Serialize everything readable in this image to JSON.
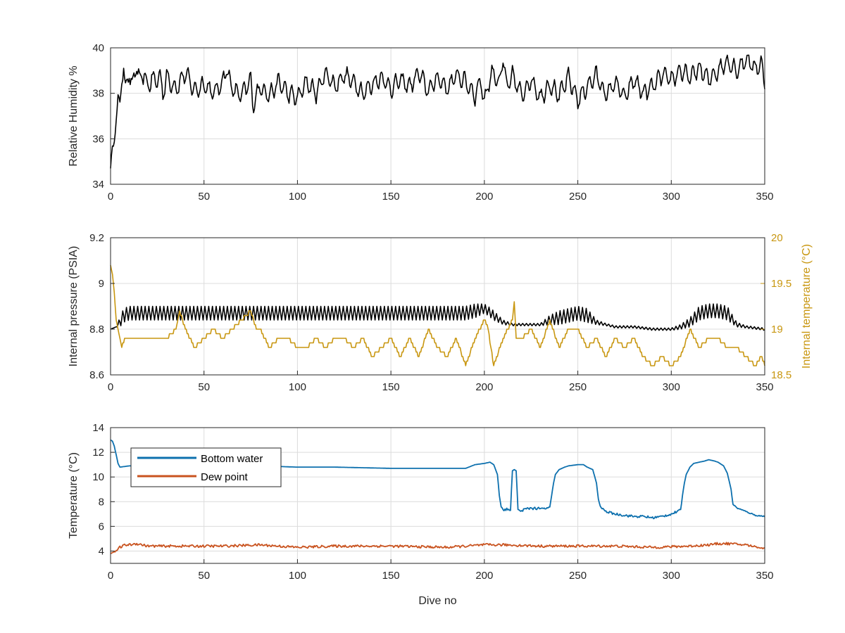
{
  "colors": {
    "humidity": "#000000",
    "pressure": "#000000",
    "internal_temperature": "#c8960f",
    "bottom_water": "#0d70ae",
    "dew_point": "#c9531f"
  },
  "chart_data": [
    {
      "type": "line",
      "title": "",
      "xlabel": "",
      "ylabel": "Relative Humidity %",
      "xlim": [
        0,
        350
      ],
      "ylim": [
        34,
        40
      ],
      "xticks": [
        0,
        50,
        100,
        150,
        200,
        250,
        300,
        350
      ],
      "yticks": [
        34,
        36,
        38,
        40
      ],
      "grid": true,
      "series": [
        {
          "color": "#000000",
          "x": [
            0,
            1,
            2,
            3,
            4,
            5,
            6,
            7,
            8,
            10,
            12,
            14,
            16,
            18,
            20,
            22,
            24,
            26,
            28,
            30,
            35,
            40,
            45,
            50,
            55,
            60,
            62,
            65,
            70,
            75,
            76,
            80,
            85,
            90,
            95,
            100,
            105,
            110,
            115,
            120,
            125,
            130,
            135,
            140,
            145,
            150,
            155,
            160,
            165,
            170,
            175,
            180,
            185,
            190,
            195,
            198,
            200,
            202,
            205,
            208,
            210,
            212,
            215,
            220,
            225,
            230,
            235,
            240,
            245,
            250,
            255,
            260,
            265,
            270,
            275,
            280,
            285,
            290,
            295,
            300,
            305,
            310,
            315,
            320,
            325,
            330,
            335,
            340,
            345,
            348,
            350
          ],
          "y": [
            34.8,
            35.5,
            36.0,
            36.8,
            37.8,
            37.6,
            38.5,
            39.2,
            38.2,
            38.9,
            38.3,
            39.3,
            38.4,
            39.0,
            38.1,
            38.8,
            38.4,
            38.9,
            38.0,
            38.7,
            38.2,
            38.9,
            38.1,
            38.4,
            38.0,
            38.5,
            39.1,
            38.2,
            37.9,
            38.6,
            37.5,
            38.3,
            37.9,
            38.5,
            38.0,
            37.8,
            38.5,
            38.0,
            38.9,
            38.3,
            38.8,
            38.5,
            38.0,
            38.4,
            38.7,
            38.2,
            38.6,
            38.3,
            38.9,
            38.1,
            38.7,
            38.2,
            38.8,
            38.5,
            37.9,
            38.6,
            37.6,
            38.4,
            39.0,
            38.3,
            39.6,
            38.2,
            38.8,
            37.9,
            38.6,
            37.8,
            38.4,
            37.9,
            38.7,
            37.7,
            38.3,
            38.8,
            37.9,
            38.5,
            37.8,
            38.6,
            38.0,
            38.3,
            38.8,
            38.6,
            39.0,
            38.7,
            39.1,
            38.6,
            39.0,
            39.4,
            39.0,
            39.5,
            39.1,
            39.3,
            38.5
          ]
        }
      ]
    },
    {
      "type": "line",
      "title": "",
      "xlabel": "",
      "ylabel": "Internal pressure (PSIA)",
      "ylabel_right": "Internal temperature (°C)",
      "xlim": [
        0,
        350
      ],
      "ylim": [
        8.6,
        9.2
      ],
      "ylim_right": [
        18.5,
        20
      ],
      "xticks": [
        0,
        50,
        100,
        150,
        200,
        250,
        300,
        350
      ],
      "yticks": [
        8.6,
        8.8,
        9,
        9.2
      ],
      "yticks_right": [
        18.5,
        19,
        19.5,
        20
      ],
      "grid": true,
      "series": [
        {
          "axis": "left",
          "color": "#000000",
          "x": [
            0,
            3,
            5,
            7,
            10,
            15,
            20,
            30,
            40,
            50,
            60,
            70,
            80,
            90,
            100,
            110,
            120,
            130,
            140,
            150,
            160,
            170,
            180,
            190,
            195,
            200,
            202,
            205,
            210,
            215,
            220,
            230,
            235,
            240,
            245,
            250,
            255,
            260,
            265,
            270,
            280,
            290,
            300,
            305,
            310,
            315,
            320,
            325,
            330,
            335,
            340,
            350
          ],
          "y": [
            8.8,
            8.81,
            8.83,
            8.86,
            8.87,
            8.87,
            8.87,
            8.87,
            8.87,
            8.87,
            8.87,
            8.87,
            8.87,
            8.87,
            8.87,
            8.87,
            8.87,
            8.87,
            8.87,
            8.87,
            8.87,
            8.87,
            8.87,
            8.87,
            8.88,
            8.89,
            8.88,
            8.86,
            8.83,
            8.82,
            8.82,
            8.82,
            8.84,
            8.85,
            8.86,
            8.87,
            8.86,
            8.83,
            8.82,
            8.81,
            8.81,
            8.8,
            8.8,
            8.81,
            8.83,
            8.87,
            8.88,
            8.88,
            8.87,
            8.82,
            8.81,
            8.8
          ],
          "oscillation": [
            0,
            0,
            0.02,
            0.03,
            0.03,
            0.03,
            0.03,
            0.03,
            0.03,
            0.03,
            0.03,
            0.03,
            0.03,
            0.03,
            0.03,
            0.03,
            0.03,
            0.03,
            0.03,
            0.03,
            0.03,
            0.03,
            0.03,
            0.03,
            0.03,
            0.02,
            0.02,
            0.02,
            0.01,
            0.005,
            0.005,
            0.005,
            0.02,
            0.03,
            0.03,
            0.03,
            0.03,
            0.01,
            0.005,
            0.005,
            0.005,
            0.005,
            0.005,
            0.01,
            0.02,
            0.03,
            0.03,
            0.03,
            0.03,
            0.01,
            0.005,
            0.005
          ]
        },
        {
          "axis": "right",
          "color": "#c8960f",
          "x": [
            0,
            1,
            2,
            3,
            4,
            5,
            6,
            8,
            12,
            15,
            18,
            20,
            25,
            30,
            35,
            37,
            40,
            45,
            50,
            55,
            60,
            65,
            70,
            75,
            78,
            80,
            85,
            90,
            95,
            100,
            105,
            110,
            115,
            120,
            125,
            130,
            135,
            140,
            145,
            150,
            155,
            160,
            165,
            170,
            175,
            180,
            185,
            190,
            195,
            200,
            202,
            205,
            210,
            215,
            216,
            217,
            220,
            225,
            230,
            235,
            240,
            245,
            250,
            255,
            260,
            265,
            270,
            275,
            280,
            285,
            290,
            295,
            300,
            305,
            310,
            315,
            320,
            325,
            330,
            335,
            340,
            345,
            348,
            350
          ],
          "y": [
            19.7,
            19.6,
            19.4,
            19.1,
            19.0,
            18.9,
            18.8,
            18.9,
            18.9,
            18.9,
            18.9,
            18.9,
            18.9,
            18.9,
            19.0,
            19.2,
            19.0,
            18.8,
            18.9,
            19.0,
            18.9,
            19.0,
            19.1,
            19.2,
            19.0,
            19.0,
            18.8,
            18.9,
            18.9,
            18.8,
            18.8,
            18.9,
            18.8,
            18.9,
            18.9,
            18.8,
            18.9,
            18.7,
            18.8,
            18.9,
            18.7,
            18.9,
            18.7,
            19.0,
            18.8,
            18.7,
            18.9,
            18.6,
            18.9,
            19.1,
            19.0,
            18.6,
            18.9,
            19.1,
            19.3,
            18.9,
            18.9,
            19.0,
            18.8,
            19.1,
            18.8,
            19.0,
            19.0,
            18.8,
            18.9,
            18.7,
            18.9,
            18.8,
            18.9,
            18.7,
            18.6,
            18.7,
            18.6,
            18.7,
            19.0,
            18.8,
            18.9,
            18.9,
            18.8,
            18.8,
            18.7,
            18.6,
            18.7,
            18.6
          ]
        }
      ]
    },
    {
      "type": "line",
      "title": "",
      "xlabel": "Dive no",
      "ylabel": "Temperature (°C)",
      "xlim": [
        0,
        350
      ],
      "ylim": [
        3,
        14
      ],
      "xticks": [
        0,
        50,
        100,
        150,
        200,
        250,
        300,
        350
      ],
      "yticks": [
        4,
        6,
        8,
        10,
        12,
        14
      ],
      "grid": true,
      "legend": "top-left",
      "series": [
        {
          "name": "Bottom water",
          "color": "#0d70ae",
          "x": [
            0,
            1,
            2,
            3,
            4,
            5,
            10,
            15,
            20,
            40,
            60,
            80,
            100,
            120,
            150,
            180,
            190,
            195,
            200,
            203,
            205,
            207,
            208,
            209,
            210,
            212,
            214,
            215,
            216,
            217,
            218,
            219,
            220,
            225,
            230,
            235,
            236,
            237,
            238,
            240,
            243,
            245,
            250,
            253,
            255,
            258,
            260,
            261,
            262,
            265,
            270,
            275,
            280,
            285,
            290,
            295,
            300,
            305,
            306,
            307,
            308,
            310,
            312,
            315,
            318,
            320,
            323,
            325,
            328,
            330,
            332,
            333,
            335,
            340,
            345,
            350
          ],
          "y": [
            13.0,
            12.9,
            12.5,
            11.8,
            11.1,
            10.8,
            10.9,
            10.9,
            10.9,
            10.9,
            10.9,
            10.9,
            10.8,
            10.8,
            10.7,
            10.7,
            10.7,
            11.0,
            11.1,
            11.2,
            11.0,
            10.2,
            8.5,
            7.6,
            7.3,
            7.4,
            7.3,
            10.5,
            10.6,
            10.5,
            7.4,
            7.2,
            7.3,
            7.5,
            7.4,
            7.5,
            8.5,
            9.5,
            10.2,
            10.6,
            10.8,
            10.9,
            11.0,
            11.0,
            10.8,
            10.6,
            9.5,
            8.2,
            7.6,
            7.2,
            7.0,
            6.9,
            6.8,
            6.8,
            6.7,
            6.8,
            7.0,
            7.3,
            8.5,
            9.5,
            10.2,
            10.8,
            11.1,
            11.2,
            11.3,
            11.4,
            11.3,
            11.2,
            10.9,
            10.3,
            9.0,
            7.8,
            7.5,
            7.2,
            6.9,
            6.8
          ],
          "noise": [
            0,
            0,
            0,
            0,
            0,
            0,
            0,
            0,
            0,
            0,
            0,
            0,
            0,
            0,
            0,
            0,
            0,
            0,
            0,
            0,
            0,
            0,
            0,
            0.1,
            0.15,
            0.2,
            0.2,
            0,
            0,
            0,
            0.15,
            0.2,
            0.2,
            0.25,
            0.25,
            0.2,
            0,
            0,
            0,
            0,
            0,
            0,
            0,
            0,
            0,
            0,
            0,
            0,
            0.1,
            0.15,
            0.2,
            0.2,
            0.2,
            0.2,
            0.2,
            0.2,
            0.2,
            0.2,
            0,
            0,
            0,
            0,
            0,
            0,
            0,
            0,
            0,
            0,
            0,
            0,
            0,
            0.1,
            0.1,
            0.1,
            0.1,
            0.1
          ]
        },
        {
          "name": "Dew point",
          "color": "#c9531f",
          "x": [
            0,
            3,
            5,
            8,
            10,
            14,
            20,
            40,
            60,
            80,
            100,
            120,
            150,
            180,
            200,
            210,
            230,
            250,
            270,
            290,
            310,
            320,
            325,
            330,
            340,
            350
          ],
          "y": [
            3.8,
            4.0,
            4.3,
            4.5,
            4.5,
            4.6,
            4.4,
            4.4,
            4.4,
            4.5,
            4.3,
            4.4,
            4.4,
            4.3,
            4.5,
            4.5,
            4.4,
            4.4,
            4.4,
            4.3,
            4.4,
            4.5,
            4.6,
            4.6,
            4.5,
            4.2
          ],
          "noise": [
            0,
            0.1,
            0.2,
            0.2,
            0.2,
            0.2,
            0.2,
            0.2,
            0.2,
            0.2,
            0.2,
            0.2,
            0.2,
            0.2,
            0.2,
            0.2,
            0.2,
            0.2,
            0.2,
            0.2,
            0.2,
            0.2,
            0.2,
            0.2,
            0.2,
            0.1
          ]
        }
      ]
    }
  ]
}
